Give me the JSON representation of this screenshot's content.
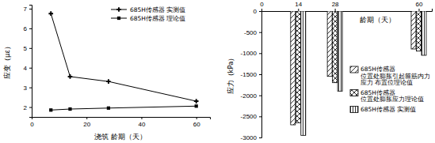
{
  "chart_data": [
    {
      "type": "line",
      "xlabel": "浇筑 龄期（天）",
      "ylabel": "应变（με）",
      "x": [
        7,
        14,
        28,
        60
      ],
      "series": [
        {
          "name": "685H传感器 实测值",
          "color": "#000000",
          "marker": "cross",
          "values": [
            6.75,
            3.55,
            3.3,
            2.3
          ]
        },
        {
          "name": "685H传感器 理论值",
          "color": "#000000",
          "marker": "square",
          "values": [
            1.85,
            1.9,
            1.95,
            2.05
          ]
        }
      ],
      "xlim": [
        0,
        65
      ],
      "xticks": [
        0,
        20,
        40,
        60
      ],
      "ylim": [
        1.5,
        7.2
      ],
      "yticks": [
        2,
        3,
        4,
        5,
        6,
        7
      ],
      "legend": "upper right"
    },
    {
      "type": "bar",
      "xlabel": "龄期（天）",
      "ylabel": "应力（kPa）",
      "x": [
        14,
        28,
        60
      ],
      "series": [
        {
          "name": "685H传感器 位置处膨胀引起箍筋内力 应力 布置位理论值",
          "color": "#000000",
          "values": [
            -2700,
            -1550,
            -900
          ]
        },
        {
          "name": "685H传感器 位置处膨胀应力理论值",
          "color": "#000000",
          "values": [
            -2650,
            -1700,
            -950
          ]
        },
        {
          "name": "685H传感器 实测值",
          "color": "#000000",
          "values": [
            -2950,
            -1900,
            -1050
          ]
        }
      ],
      "xlim": [
        0,
        65
      ],
      "xticks": [
        0,
        14,
        28,
        60
      ],
      "ylim": [
        -3000,
        0
      ],
      "yticks": [
        0,
        -500,
        -1000,
        -1500,
        -2000,
        -2500,
        -3000
      ],
      "legend": "lower right"
    }
  ]
}
